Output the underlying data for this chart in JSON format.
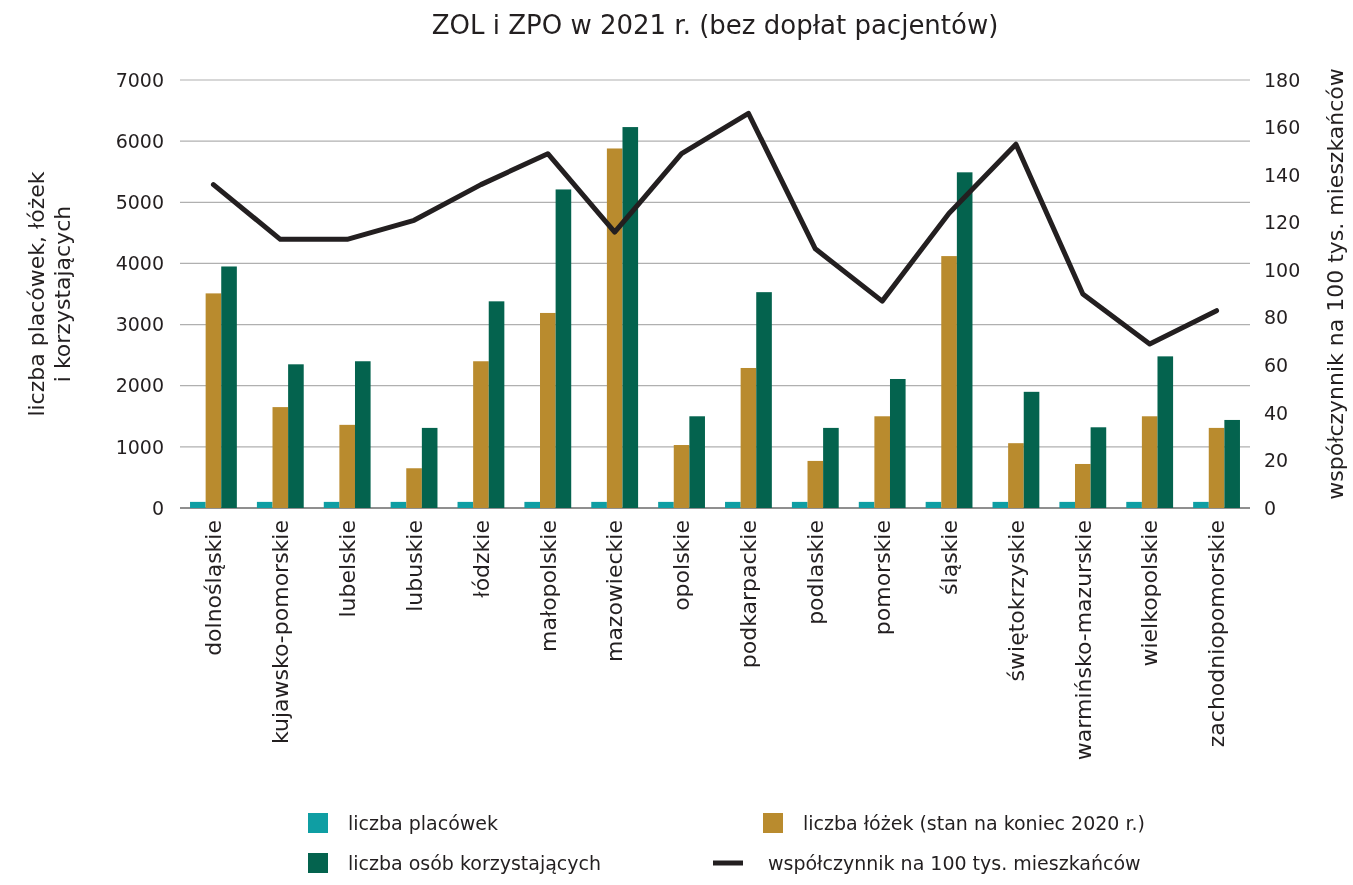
{
  "chart_data": {
    "type": "bar",
    "title": "ZOL i ZPO w 2021 r. (bez dopłat pacjentów)",
    "ylabel": "liczba placówek, łóżek\ni  korzystających",
    "y2label": "współczynnik na 100 tys. mieszkańców",
    "categories": [
      "dolnośląskie",
      "kujawsko-pomorskie",
      "lubelskie",
      "lubuskie",
      "łódzkie",
      "małopolskie",
      "mazowieckie",
      "opolskie",
      "podkarpackie",
      "podlaskie",
      "pomorskie",
      "śląskie",
      "świętokrzyskie",
      "warmińsko-mazurskie",
      "wielkopolskie",
      "zachodniopomorskie"
    ],
    "series": [
      {
        "name": "liczba placówek",
        "color": "#0f9ea3",
        "values": [
          100,
          100,
          100,
          100,
          100,
          100,
          100,
          100,
          100,
          100,
          100,
          100,
          100,
          100,
          100,
          100
        ]
      },
      {
        "name": "liczba łóżek (stan na koniec 2020 r.)",
        "color": "#b98b2e",
        "values": [
          3510,
          1650,
          1360,
          650,
          2400,
          3190,
          5880,
          1030,
          2290,
          770,
          1500,
          4120,
          1060,
          720,
          1500,
          1310
        ]
      },
      {
        "name": "liczba osób korzystających",
        "color": "#04634e",
        "values": [
          3950,
          2350,
          2400,
          1310,
          3380,
          5210,
          6230,
          1500,
          3530,
          1310,
          2110,
          5490,
          1900,
          1320,
          2480,
          1440
        ]
      },
      {
        "name": "współczynnik na 100 tys. mieszkańców",
        "type": "line",
        "axis": "y2",
        "color": "#231f20",
        "values": [
          136,
          113,
          113,
          121,
          136,
          149,
          116,
          149,
          166,
          109,
          87,
          124,
          153,
          90,
          69,
          83
        ]
      }
    ],
    "ylim": [
      0,
      7000
    ],
    "yticks": [
      0,
      1000,
      2000,
      3000,
      4000,
      5000,
      6000,
      7000
    ],
    "y2lim": [
      0,
      180
    ],
    "y2ticks": [
      0,
      20,
      40,
      60,
      80,
      100,
      120,
      140,
      160,
      180
    ],
    "grid": "y",
    "legend": "bottom",
    "marker": "none",
    "line_style": "solid"
  }
}
